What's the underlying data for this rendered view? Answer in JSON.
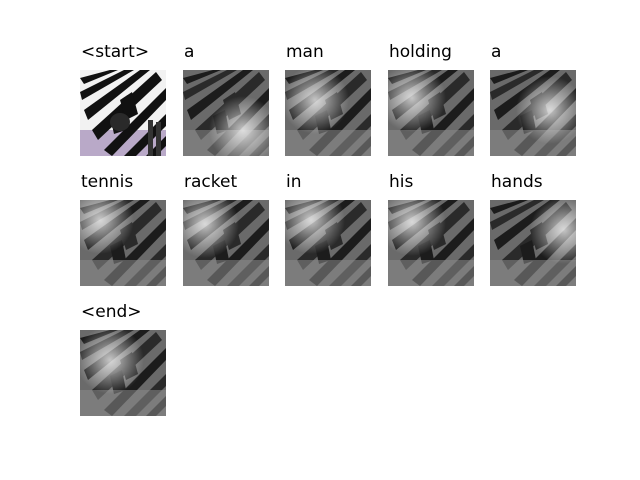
{
  "figure": {
    "caption_tokens": [
      {
        "word": "<start>",
        "image": "zebra-photo-original"
      },
      {
        "word": "a",
        "image": "attention-map-grayscale"
      },
      {
        "word": "man",
        "image": "attention-map-grayscale"
      },
      {
        "word": "holding",
        "image": "attention-map-grayscale"
      },
      {
        "word": "a",
        "image": "attention-map-grayscale"
      },
      {
        "word": "tennis",
        "image": "attention-map-grayscale"
      },
      {
        "word": "racket",
        "image": "attention-map-grayscale"
      },
      {
        "word": "in",
        "image": "attention-map-grayscale"
      },
      {
        "word": "his",
        "image": "attention-map-grayscale"
      },
      {
        "word": "hands",
        "image": "attention-map-grayscale"
      },
      {
        "word": "<end>",
        "image": "attention-map-grayscale"
      }
    ],
    "colors": {
      "background": "#ffffff",
      "text": "#000000",
      "zebra_stripe": "#111111",
      "zebra_light": "#f2f2f2",
      "grass": "#b9a9c8"
    }
  }
}
